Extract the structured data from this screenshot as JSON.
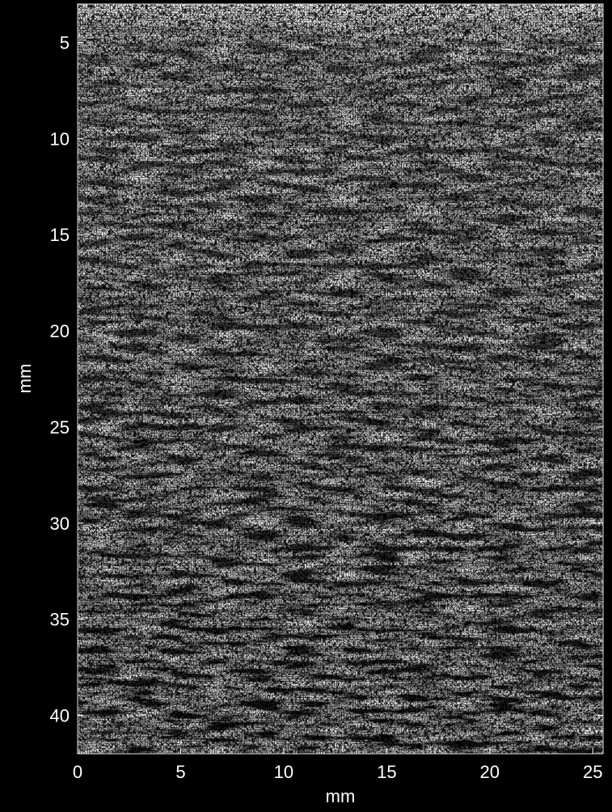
{
  "chart_data": {
    "type": "image",
    "xlabel": "mm",
    "ylabel": "mm",
    "xlim": [
      0,
      25.5
    ],
    "ylim": [
      42,
      3
    ],
    "xticks": [
      0,
      5,
      10,
      15,
      20,
      25
    ],
    "yticks": [
      5,
      10,
      15,
      20,
      25,
      30,
      35,
      40
    ],
    "colormap": "gray"
  }
}
